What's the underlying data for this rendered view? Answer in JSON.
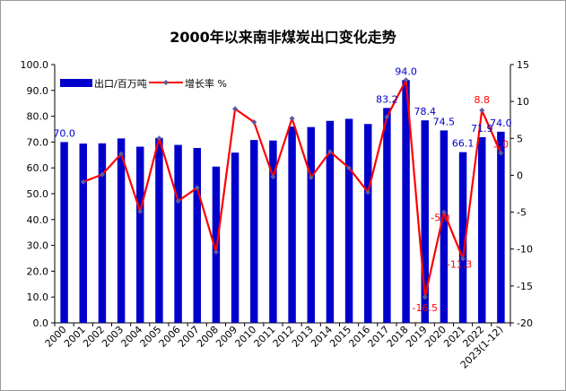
{
  "chart_data": {
    "type": "bar",
    "title": "2000年以来南非煤炭出口变化走势",
    "categories": [
      "2000",
      "2001",
      "2002",
      "2003",
      "2004",
      "2005",
      "2006",
      "2007",
      "2008",
      "2009",
      "2010",
      "2011",
      "2012",
      "2013",
      "2014",
      "2015",
      "2016",
      "2017",
      "2018",
      "2019",
      "2020",
      "2021",
      "2022",
      "2023(1-12)"
    ],
    "series": [
      {
        "name": "出口/百万吨",
        "axis": "left",
        "kind": "bar",
        "color": "#0000CC",
        "values": [
          70.0,
          69.4,
          69.5,
          71.4,
          68.2,
          71.6,
          68.9,
          67.7,
          60.5,
          65.9,
          70.8,
          70.6,
          76.0,
          75.8,
          78.2,
          79.0,
          77.0,
          83.2,
          94.0,
          78.4,
          74.5,
          66.1,
          71.9,
          74.0
        ],
        "labeled_indices": [
          0,
          17,
          18,
          19,
          20,
          21,
          22,
          23
        ],
        "label_color": "#0000CC"
      },
      {
        "name": "增长率 %",
        "axis": "right",
        "kind": "line",
        "color": "#FF0000",
        "marker_color": "#5a5a9a",
        "values": [
          null,
          -0.9,
          0.1,
          2.9,
          -4.9,
          5.0,
          -3.5,
          -1.7,
          -10.4,
          9.0,
          7.2,
          -0.2,
          7.7,
          -0.3,
          3.2,
          1.0,
          -2.3,
          7.9,
          12.9,
          -16.5,
          -5.0,
          -11.3,
          8.8,
          3.0
        ],
        "labeled_indices": [
          19,
          20,
          21,
          22,
          23
        ],
        "labels": {
          "19": "-16.5",
          "20": "-5.0",
          "21": "-11.3",
          "22": "8.8",
          "23": "3.0"
        },
        "label_color": "#FF0000"
      }
    ],
    "y_left": {
      "min": 0,
      "max": 100,
      "step": 10,
      "decimals": 1
    },
    "y_right": {
      "min": -20,
      "max": 15,
      "step": 5,
      "decimals": 0
    },
    "legend_position": "top-left",
    "grid": false
  }
}
